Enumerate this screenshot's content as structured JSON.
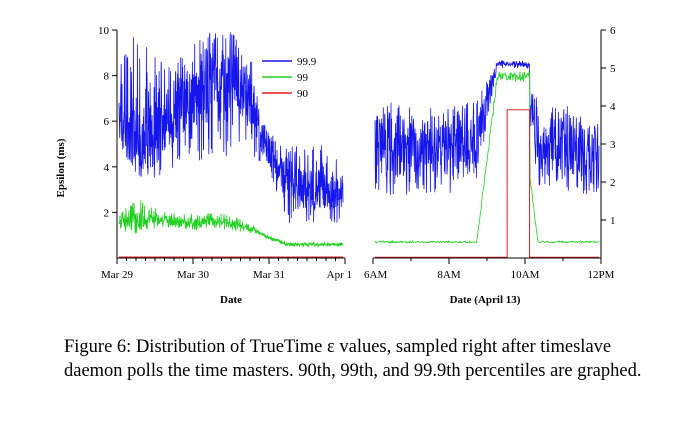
{
  "colors": {
    "p999": "#1515ee",
    "p99": "#22d022",
    "p90": "#e02020",
    "axis": "#000000"
  },
  "chart_data": [
    {
      "type": "line",
      "xlabel": "Date",
      "ylabel": "Epsilon (ms)",
      "x_tick_labels": [
        "Mar 29",
        "Mar 30",
        "Mar 31",
        "Apr 1"
      ],
      "y_ticks": [
        2,
        4,
        6,
        8,
        10
      ],
      "ylim": [
        0,
        10
      ],
      "legend_position": "top-right",
      "grid": false,
      "series": [
        {
          "name": "99.9",
          "color": "#1515ee",
          "band_low": [
            5.0,
            3.5,
            3.5,
            4.0,
            4.0,
            4.0,
            4.5,
            4.5,
            4.0,
            1.5,
            1.5,
            1.5,
            1.5
          ],
          "band_high": [
            9.0,
            10.0,
            9.0,
            9.0,
            9.5,
            10.0,
            10.0,
            9.0,
            5.5,
            5.0,
            5.0,
            5.0,
            4.0
          ],
          "typical": [
            6.0,
            5.0,
            5.5,
            6.5,
            7.0,
            7.5,
            8.0,
            7.0,
            4.5,
            3.5,
            3.0,
            3.0,
            2.8
          ]
        },
        {
          "name": "99",
          "color": "#22d022",
          "band_low": [
            1.2,
            1.0,
            1.3,
            1.2,
            1.2,
            1.3,
            1.2,
            1.1,
            0.8,
            0.5,
            0.5,
            0.5,
            0.5
          ],
          "band_high": [
            2.0,
            2.7,
            2.2,
            2.0,
            2.0,
            2.0,
            1.9,
            1.5,
            1.0,
            0.7,
            0.7,
            0.7,
            0.7
          ],
          "typical": [
            1.5,
            1.6,
            1.7,
            1.6,
            1.6,
            1.6,
            1.5,
            1.3,
            0.9,
            0.6,
            0.6,
            0.6,
            0.6
          ]
        },
        {
          "name": "90",
          "color": "#e02020",
          "values": [
            0,
            0,
            0,
            0,
            0,
            0,
            0,
            0,
            0,
            0,
            0,
            0,
            0
          ]
        }
      ]
    },
    {
      "type": "line",
      "xlabel": "Date (April 13)",
      "ylabel": "",
      "x_tick_labels": [
        "6AM",
        "8AM",
        "10AM",
        "12PM"
      ],
      "y_ticks": [
        1,
        2,
        3,
        4,
        5,
        6
      ],
      "ylim": [
        0,
        6
      ],
      "grid": false,
      "annotation": "spike in epsilon between roughly 9:30AM and 10:30AM",
      "series": [
        {
          "name": "99.9",
          "color": "#1515ee",
          "band_low": [
            1.8,
            1.6,
            1.7,
            1.5,
            1.7,
            2.0,
            5.0,
            5.0,
            1.8,
            1.7,
            1.7,
            1.6
          ],
          "band_high": [
            4.0,
            4.2,
            4.0,
            4.0,
            4.0,
            4.2,
            5.2,
            5.3,
            4.2,
            4.0,
            4.0,
            3.8
          ],
          "typical": [
            3.0,
            3.0,
            3.0,
            2.8,
            3.0,
            3.0,
            5.1,
            5.1,
            3.0,
            3.0,
            3.0,
            2.8
          ]
        },
        {
          "name": "99",
          "color": "#22d022",
          "band_low": [
            0.4,
            0.4,
            0.4,
            0.4,
            0.4,
            0.4,
            4.6,
            4.6,
            0.4,
            0.4,
            0.4,
            0.4
          ],
          "band_high": [
            0.45,
            0.45,
            0.45,
            0.45,
            0.45,
            0.45,
            4.9,
            4.9,
            0.45,
            0.45,
            0.45,
            0.45
          ],
          "typical": [
            0.42,
            0.42,
            0.42,
            0.42,
            0.42,
            0.42,
            4.8,
            4.8,
            0.42,
            0.42,
            0.42,
            0.42
          ]
        },
        {
          "name": "90",
          "color": "#e02020",
          "values": [
            0.02,
            0.02,
            0.02,
            0.02,
            0.02,
            0.02,
            3.9,
            3.9,
            0.02,
            0.02,
            0.02,
            0.02
          ]
        }
      ]
    }
  ],
  "caption": "Figure 6:  Distribution of TrueTime ε values, sampled right after timeslave daemon polls the time masters. 90th, 99th, and 99.9th percentiles are graphed."
}
